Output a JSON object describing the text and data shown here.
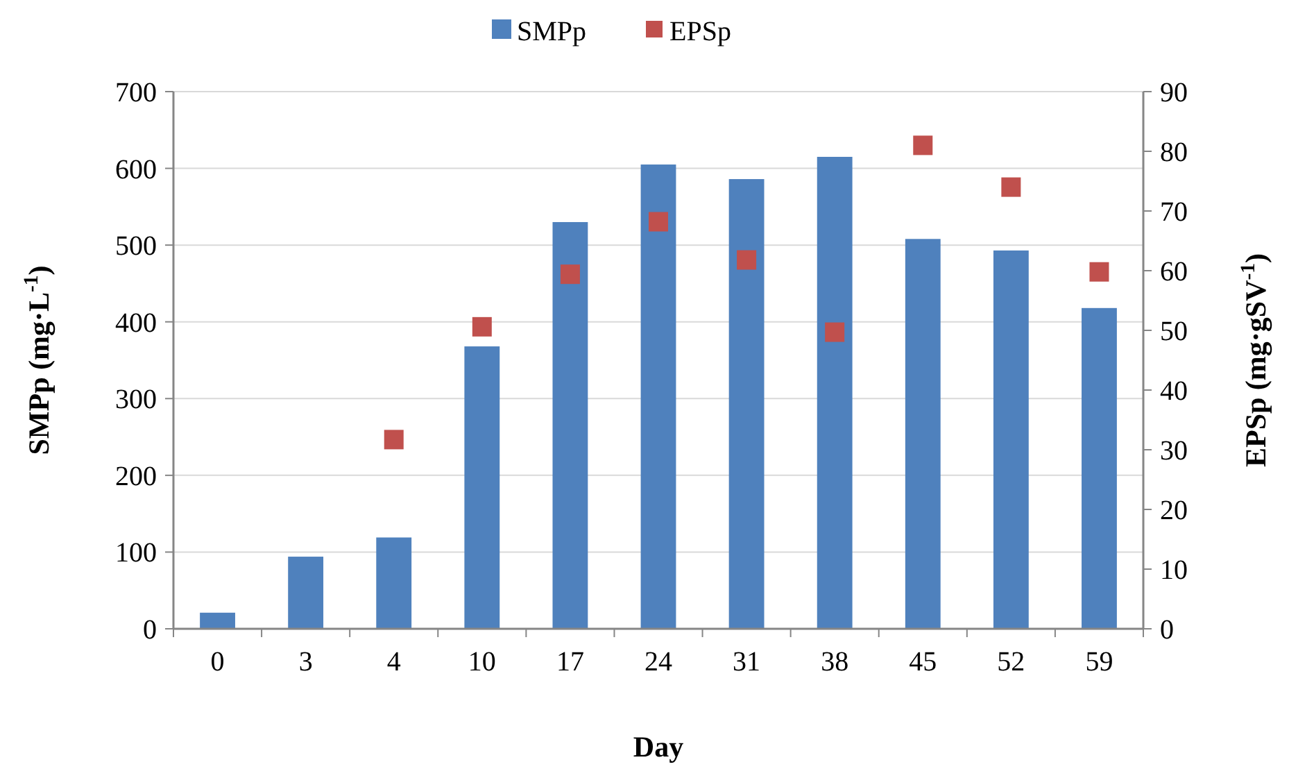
{
  "chart_data": {
    "type": "bar",
    "categories": [
      "0",
      "3",
      "4",
      "10",
      "17",
      "24",
      "31",
      "38",
      "45",
      "52",
      "59"
    ],
    "series": [
      {
        "name": "SMPp",
        "color": "#4f81bd",
        "values": [
          21,
          94,
          119,
          368,
          530,
          605,
          586,
          615,
          508,
          493,
          418
        ]
      },
      {
        "name": "EPSp",
        "type": "scatter",
        "axis": "y2",
        "marker": "square",
        "color": "#c0504d",
        "values": [
          null,
          null,
          31.7,
          50.6,
          59.4,
          68.2,
          61.8,
          49.7,
          81.0,
          74.0,
          59.8
        ]
      }
    ],
    "xlabel": "Day",
    "ylabel": "SMPp (mg·L$^{-1}$)",
    "y2label": "EPSp (mg·gSV$^{-1}$)",
    "ylim": [
      0,
      700
    ],
    "yticks": [
      0,
      100,
      200,
      300,
      400,
      500,
      600,
      700
    ],
    "y2lim": [
      0,
      90
    ],
    "y2ticks": [
      0,
      10,
      20,
      30,
      40,
      50,
      60,
      70,
      80,
      90
    ],
    "grid": "y",
    "legend": "top"
  }
}
